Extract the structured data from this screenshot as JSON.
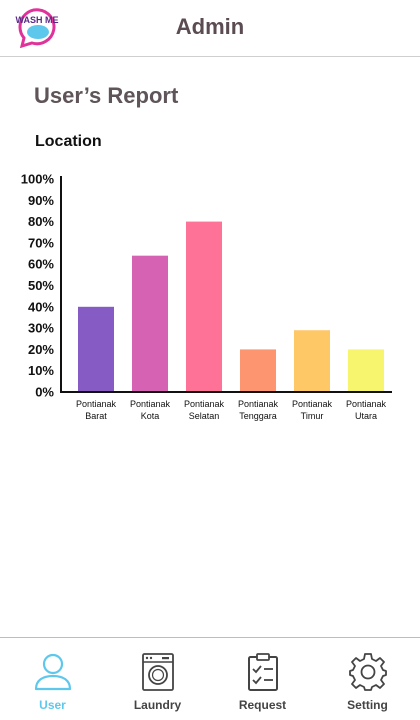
{
  "header": {
    "title": "Admin",
    "logo_text": "WASH ME"
  },
  "page": {
    "title": "User’s Report",
    "section": "Location"
  },
  "colors": {
    "accent": "#5ec8ec",
    "bars": [
      "#865cc4",
      "#d562b3",
      "#fd7296",
      "#fd9570",
      "#ffc867",
      "#f7f56e"
    ]
  },
  "chart_data": {
    "type": "bar",
    "categories": [
      [
        "Pontianak",
        "Barat"
      ],
      [
        "Pontianak",
        "Kota"
      ],
      [
        "Pontianak",
        "Selatan"
      ],
      [
        "Pontianak",
        "Tenggara"
      ],
      [
        "Pontianak",
        "Timur"
      ],
      [
        "Pontianak",
        "Utara"
      ]
    ],
    "values": [
      40,
      64,
      80,
      20,
      29,
      20
    ],
    "yticks": [
      "0%",
      "10%",
      "20%",
      "30%",
      "40%",
      "50%",
      "60%",
      "70%",
      "80%",
      "90%",
      "100%"
    ],
    "ylim": [
      0,
      100
    ],
    "grid": false,
    "legend": "none"
  },
  "nav": {
    "items": [
      {
        "label": "User",
        "icon": "user-icon",
        "active": true
      },
      {
        "label": "Laundry",
        "icon": "washing-machine-icon",
        "active": false
      },
      {
        "label": "Request",
        "icon": "clipboard-check-icon",
        "active": false
      },
      {
        "label": "Setting",
        "icon": "gear-icon",
        "active": false
      }
    ]
  }
}
